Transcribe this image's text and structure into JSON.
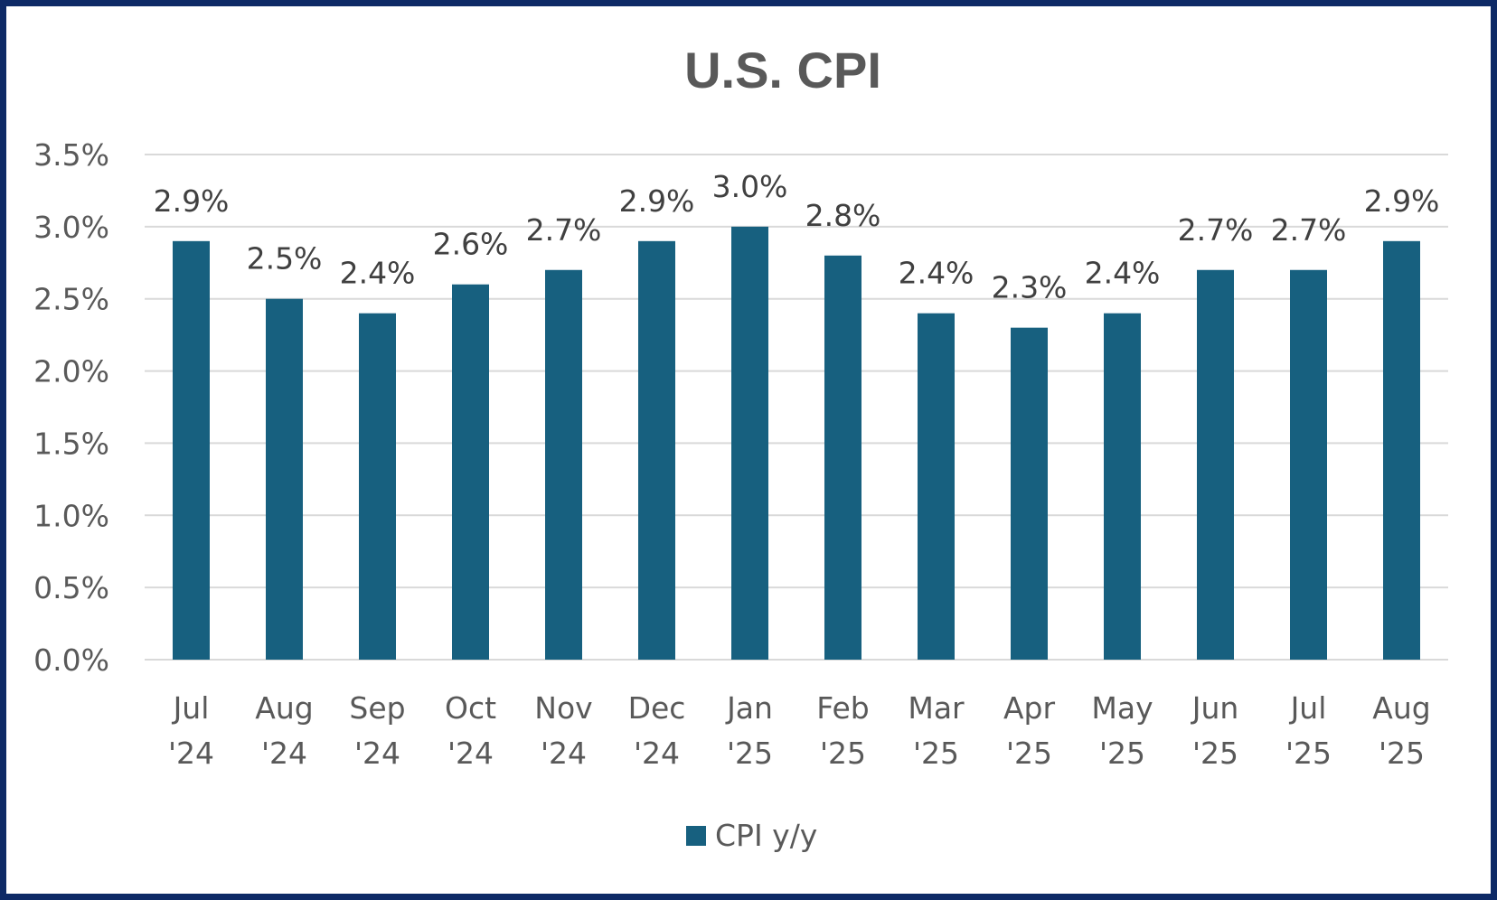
{
  "chart_data": {
    "type": "bar",
    "title": "U.S. CPI",
    "xlabel": "",
    "ylabel": "",
    "categories": [
      [
        "Jul",
        "'24"
      ],
      [
        "Aug",
        "'24"
      ],
      [
        "Sep",
        "'24"
      ],
      [
        "Oct",
        "'24"
      ],
      [
        "Nov",
        "'24"
      ],
      [
        "Dec",
        "'24"
      ],
      [
        "Jan",
        "'25"
      ],
      [
        "Feb",
        "'25"
      ],
      [
        "Mar",
        "'25"
      ],
      [
        "Apr",
        "'25"
      ],
      [
        "May",
        "'25"
      ],
      [
        "Jun",
        "'25"
      ],
      [
        "Jul",
        "'25"
      ],
      [
        "Aug",
        "'25"
      ]
    ],
    "series": [
      {
        "name": "CPI y/y",
        "color": "#17607f",
        "values": [
          2.9,
          2.5,
          2.4,
          2.6,
          2.7,
          2.9,
          3.0,
          2.8,
          2.4,
          2.3,
          2.4,
          2.7,
          2.7,
          2.9
        ],
        "data_labels": [
          "2.9%",
          "2.5%",
          "2.4%",
          "2.6%",
          "2.7%",
          "2.9%",
          "3.0%",
          "2.8%",
          "2.4%",
          "2.3%",
          "2.4%",
          "2.7%",
          "2.7%",
          "2.9%"
        ]
      }
    ],
    "ylim": [
      0,
      3.5
    ],
    "yticks": [
      0,
      0.5,
      1.0,
      1.5,
      2.0,
      2.5,
      3.0,
      3.5
    ],
    "ytick_labels": [
      "0.0%",
      "0.5%",
      "1.0%",
      "1.5%",
      "2.0%",
      "2.5%",
      "3.0%",
      "3.5%"
    ],
    "grid": true,
    "legend_position": "bottom",
    "colors": {
      "border": "#0e2a66",
      "gridline": "#d9d9d9",
      "text": "#595959"
    }
  }
}
